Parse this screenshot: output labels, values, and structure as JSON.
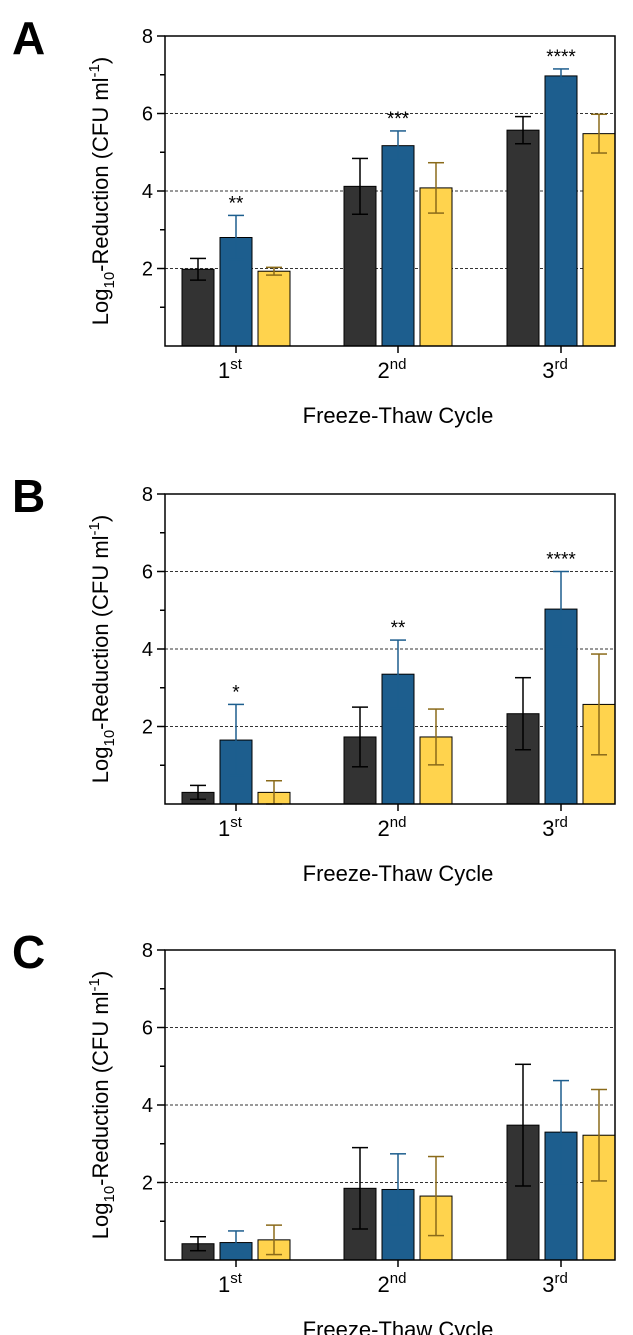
{
  "chart_data": [
    {
      "type": "bar",
      "panel": "A",
      "categories": [
        {
          "base": "1",
          "sup": "st"
        },
        {
          "base": "2",
          "sup": "nd"
        },
        {
          "base": "3",
          "sup": "rd"
        }
      ],
      "xlabel": "Freeze-Thaw Cycle",
      "ylabel": {
        "pre": "Log",
        "sub": "10",
        "mid": "-Reduction (CFU ml",
        "sup": "-1",
        "post": ")"
      },
      "ylim": [
        0,
        8
      ],
      "yticks": [
        "2",
        "4",
        "6",
        "8"
      ],
      "gridlines": [
        2,
        4,
        6
      ],
      "series": [
        {
          "values": [
            1.98,
            4.12,
            5.57
          ],
          "errors": [
            0.28,
            0.72,
            0.35
          ],
          "color": "#333333",
          "error_color": "#000000"
        },
        {
          "values": [
            2.8,
            5.17,
            6.97
          ],
          "errors": [
            0.57,
            0.38,
            0.18
          ],
          "color": "#1d5e8e",
          "error_color": "#1d5e8e"
        },
        {
          "values": [
            1.93,
            4.08,
            5.48
          ],
          "errors": [
            0.1,
            0.65,
            0.5
          ],
          "color": "#ffd34d",
          "error_color": "#8a6a1a"
        }
      ],
      "significance": [
        "**",
        "***",
        "****"
      ]
    },
    {
      "type": "bar",
      "panel": "B",
      "categories": [
        {
          "base": "1",
          "sup": "st"
        },
        {
          "base": "2",
          "sup": "nd"
        },
        {
          "base": "3",
          "sup": "rd"
        }
      ],
      "xlabel": "Freeze-Thaw Cycle",
      "ylabel": {
        "pre": "Log",
        "sub": "10",
        "mid": "-Reduction (CFU ml",
        "sup": "-1",
        "post": ")"
      },
      "ylim": [
        0,
        8
      ],
      "yticks": [
        "2",
        "4",
        "6",
        "8"
      ],
      "gridlines": [
        2,
        4,
        6
      ],
      "series": [
        {
          "values": [
            0.3,
            1.73,
            2.33
          ],
          "errors": [
            0.18,
            0.77,
            0.93
          ],
          "color": "#333333",
          "error_color": "#000000"
        },
        {
          "values": [
            1.65,
            3.35,
            5.03
          ],
          "errors": [
            0.92,
            0.88,
            0.97
          ],
          "color": "#1d5e8e",
          "error_color": "#1d5e8e"
        },
        {
          "values": [
            0.3,
            1.73,
            2.57
          ],
          "errors": [
            0.3,
            0.72,
            1.3
          ],
          "color": "#ffd34d",
          "error_color": "#8a6a1a"
        }
      ],
      "significance": [
        "*",
        "**",
        "****"
      ]
    },
    {
      "type": "bar",
      "panel": "C",
      "categories": [
        {
          "base": "1",
          "sup": "st"
        },
        {
          "base": "2",
          "sup": "nd"
        },
        {
          "base": "3",
          "sup": "rd"
        }
      ],
      "xlabel": "Freeze-Thaw Cycle",
      "ylabel": {
        "pre": "Log",
        "sub": "10",
        "mid": "-Reduction (CFU ml",
        "sup": "-1",
        "post": ")"
      },
      "ylim": [
        0,
        8
      ],
      "yticks": [
        "2",
        "4",
        "6",
        "8"
      ],
      "gridlines": [
        2,
        4,
        6
      ],
      "series": [
        {
          "values": [
            0.42,
            1.85,
            3.48
          ],
          "errors": [
            0.18,
            1.05,
            1.57
          ],
          "color": "#333333",
          "error_color": "#000000"
        },
        {
          "values": [
            0.45,
            1.82,
            3.3
          ],
          "errors": [
            0.3,
            0.92,
            1.33
          ],
          "color": "#1d5e8e",
          "error_color": "#1d5e8e"
        },
        {
          "values": [
            0.52,
            1.65,
            3.22
          ],
          "errors": [
            0.38,
            1.02,
            1.18
          ],
          "color": "#ffd34d",
          "error_color": "#8a6a1a"
        }
      ],
      "significance": [
        "",
        "",
        ""
      ]
    }
  ]
}
